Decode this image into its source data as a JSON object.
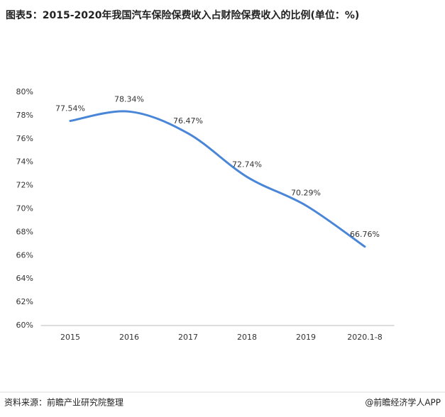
{
  "chart_data": {
    "type": "line",
    "title": "图表5：2015-2020年我国汽车保险保费收入占财险保费收入的比例(单位：%)",
    "categories": [
      "2015",
      "2016",
      "2017",
      "2018",
      "2019",
      "2020.1-8"
    ],
    "values": [
      77.54,
      78.34,
      76.47,
      72.74,
      70.29,
      66.76
    ],
    "value_labels": [
      "77.54%",
      "78.34%",
      "76.47%",
      "72.74%",
      "70.29%",
      "66.76%"
    ],
    "color": "#4a86d8",
    "ylim": [
      60,
      80
    ],
    "yticks": [
      {
        "value": 60,
        "label": "60%"
      },
      {
        "value": 62,
        "label": "62%"
      },
      {
        "value": 64,
        "label": "64%"
      },
      {
        "value": 66,
        "label": "66%"
      },
      {
        "value": 68,
        "label": "68%"
      },
      {
        "value": 70,
        "label": "70%"
      },
      {
        "value": 72,
        "label": "72%"
      },
      {
        "value": 74,
        "label": "74%"
      },
      {
        "value": 76,
        "label": "76%"
      },
      {
        "value": 78,
        "label": "78%"
      },
      {
        "value": 80,
        "label": "80%"
      }
    ],
    "source": "资料来源：前瞻产业研究院整理",
    "credit": "@前瞻经济学人APP"
  }
}
